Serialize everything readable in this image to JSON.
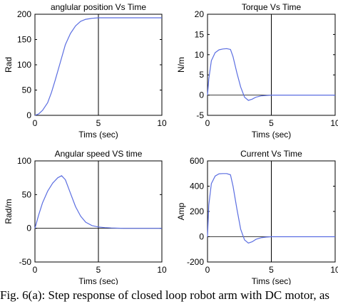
{
  "figure": {
    "caption": "Fig. 6(a): Step response of closed loop robot arm with DC motor, as"
  },
  "colors": {
    "line": "#5b6ee1",
    "axis": "#000000",
    "grid": "#000000"
  },
  "chart_data": [
    {
      "type": "line",
      "title": "anglular position Vs Time",
      "xlabel": "Tims (sec)",
      "ylabel": "Rad",
      "xlim": [
        0,
        10
      ],
      "ylim": [
        0,
        200
      ],
      "xticks": [
        0,
        5,
        10
      ],
      "yticks": [
        0,
        50,
        100,
        150,
        200
      ],
      "vline": 5,
      "x": [
        0,
        0.3,
        0.6,
        1.0,
        1.3,
        1.6,
        2.0,
        2.4,
        2.8,
        3.2,
        3.6,
        4.0,
        4.5,
        5.0,
        5.5,
        6.0,
        7.0,
        8.0,
        10.0
      ],
      "y": [
        0,
        3,
        10,
        25,
        45,
        70,
        105,
        140,
        162,
        177,
        186,
        190,
        192,
        193,
        193,
        193,
        193,
        193,
        193
      ]
    },
    {
      "type": "line",
      "title": "Torque Vs Time",
      "xlabel": "Tims (sec)",
      "ylabel": "N/m",
      "xlim": [
        0,
        10
      ],
      "ylim": [
        -5,
        20
      ],
      "xticks": [
        0,
        5,
        10
      ],
      "yticks": [
        -5,
        0,
        5,
        10,
        15,
        20
      ],
      "vline": 5,
      "hline": 0,
      "x": [
        0,
        0.1,
        0.3,
        0.6,
        0.9,
        1.2,
        1.5,
        1.8,
        2.0,
        2.3,
        2.6,
        2.9,
        3.2,
        3.5,
        3.8,
        4.2,
        4.6,
        5.0,
        6.0,
        8.0,
        10.0
      ],
      "y": [
        0,
        4,
        8.5,
        10.5,
        11.2,
        11.4,
        11.5,
        11.3,
        9.5,
        5.5,
        2,
        -0.5,
        -1.3,
        -1.0,
        -0.5,
        -0.2,
        -0.1,
        0,
        0,
        0,
        0
      ]
    },
    {
      "type": "line",
      "title": "Angular speed VS time",
      "xlabel": "Tims (sec)",
      "ylabel": "Rad/m",
      "xlim": [
        0,
        10
      ],
      "ylim": [
        -50,
        100
      ],
      "xticks": [
        0,
        5,
        10
      ],
      "yticks": [
        -50,
        0,
        50,
        100
      ],
      "vline": 5,
      "hline": 0,
      "x": [
        0,
        0.3,
        0.6,
        1.0,
        1.4,
        1.8,
        2.1,
        2.4,
        2.8,
        3.2,
        3.6,
        4.0,
        4.5,
        5.0,
        5.5,
        6.0,
        7.0,
        8.0,
        10.0
      ],
      "y": [
        0,
        20,
        38,
        55,
        67,
        75,
        78,
        72,
        52,
        32,
        18,
        9,
        4,
        2,
        1,
        0.5,
        0,
        0,
        0
      ]
    },
    {
      "type": "line",
      "title": "Current Vs Time",
      "xlabel": "Tims (sec)",
      "ylabel": "Amp",
      "xlim": [
        0,
        10
      ],
      "ylim": [
        -200,
        600
      ],
      "xticks": [
        0,
        5,
        10
      ],
      "yticks": [
        -200,
        0,
        200,
        400,
        600
      ],
      "vline": 5,
      "hline": 0,
      "x": [
        0,
        0.1,
        0.3,
        0.6,
        0.9,
        1.2,
        1.5,
        1.8,
        2.0,
        2.3,
        2.6,
        2.9,
        3.2,
        3.5,
        3.8,
        4.2,
        4.6,
        5.0,
        6.0,
        8.0,
        10.0
      ],
      "y": [
        0,
        250,
        420,
        480,
        498,
        500,
        500,
        490,
        400,
        220,
        60,
        -25,
        -50,
        -40,
        -20,
        -8,
        -3,
        0,
        0,
        0,
        0
      ]
    }
  ]
}
